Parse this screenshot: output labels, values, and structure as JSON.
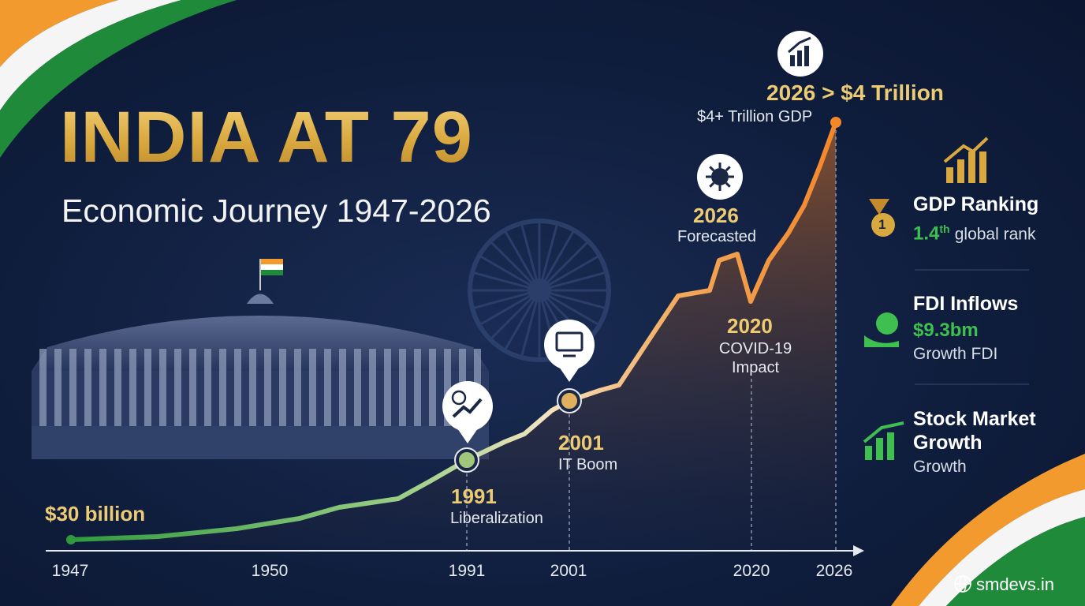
{
  "header": {
    "title": "INDIA AT 79",
    "subtitle": "Economic Journey 1947-2026"
  },
  "timeline": {
    "start_label": "$30 billion",
    "milestones": [
      {
        "year": "1991",
        "label": "Liberalization"
      },
      {
        "year": "2001",
        "label": "IT Boom"
      },
      {
        "year": "2020",
        "label": "COVID-19 Impact"
      },
      {
        "year": "2026",
        "label": "Forecasted"
      }
    ],
    "peak": {
      "heading": "2026 > $4 Trillion",
      "label": "$4+ Trillion GDP"
    },
    "axis_labels": [
      "1947",
      "1950",
      "1991",
      "2001",
      "2020",
      "2026"
    ]
  },
  "stats": [
    {
      "title": "GDP Ranking",
      "badge": "1",
      "value": "1.4",
      "value_suffix": "th",
      "detail": "global rank"
    },
    {
      "title": "FDI Inflows",
      "value": "$9.3bm",
      "detail": "Growth FDI"
    },
    {
      "title": "Stock Market Growth",
      "detail": "Growth"
    }
  ],
  "footer": {
    "site": "smdevs.in"
  }
}
